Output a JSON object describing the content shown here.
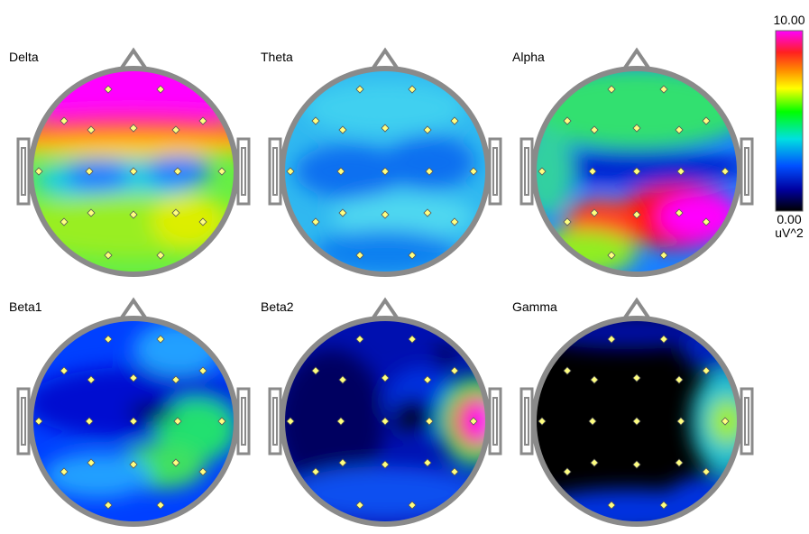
{
  "panels": [
    {
      "label": "Delta"
    },
    {
      "label": "Theta"
    },
    {
      "label": "Alpha"
    },
    {
      "label": "Beta1"
    },
    {
      "label": "Beta2"
    },
    {
      "label": "Gamma"
    }
  ],
  "colorbar": {
    "max": "10.00",
    "min": "0.00",
    "unit": "uV^2"
  }
}
